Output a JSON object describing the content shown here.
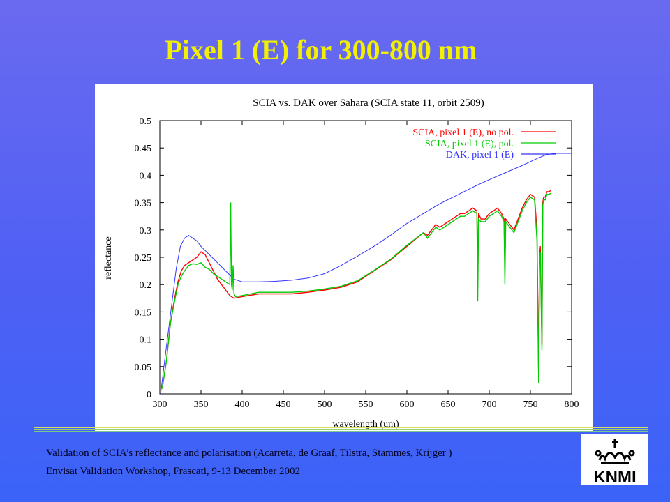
{
  "slide": {
    "title": "Pixel 1 (E) for 300-800 nm",
    "footer_line1": "Validation of SCIA’s reflectance and polarisation (Acarreta, de Graaf, Tilstra, Stammes, Krijger )",
    "footer_line2": "Envisat Validation Workshop, Frascati, 9-13 December 2002",
    "logo_text": "KNMI"
  },
  "colors": {
    "background_top": "#6a6af0",
    "background_bottom": "#3b63f8",
    "title": "#f2f000",
    "series_no_pol": "#ff0000",
    "series_pol": "#00cc00",
    "series_dak": "#3333ff"
  },
  "chart_data": {
    "type": "line",
    "title": "SCIA vs. DAK over Sahara (SCIA state 11, orbit 2509)",
    "xlabel": "wavelength (um)",
    "ylabel": "reflectance",
    "xlim": [
      300,
      800
    ],
    "ylim": [
      0,
      0.5
    ],
    "xticks": [
      300,
      350,
      400,
      450,
      500,
      550,
      600,
      650,
      700,
      750,
      800
    ],
    "yticks": [
      0,
      0.05,
      0.1,
      0.15,
      0.2,
      0.25,
      0.3,
      0.35,
      0.4,
      0.45,
      0.5
    ],
    "ytick_labels": [
      "0",
      "0.05",
      "0.1",
      "0.15",
      "0.2",
      "0.25",
      "0.3",
      "0.35",
      "0.4",
      "0.45",
      "0.5"
    ],
    "grid": false,
    "legend_position": "top-right",
    "series": [
      {
        "name": "SCIA, pixel 1 (E), no pol.",
        "color": "#ff0000",
        "x": [
          303,
          308,
          313,
          318,
          322,
          326,
          330,
          335,
          340,
          345,
          350,
          355,
          360,
          365,
          370,
          375,
          380,
          385,
          390,
          400,
          420,
          440,
          460,
          480,
          500,
          520,
          540,
          560,
          580,
          600,
          620,
          625,
          630,
          635,
          640,
          645,
          650,
          655,
          660,
          665,
          670,
          675,
          680,
          685,
          686,
          687,
          690,
          695,
          700,
          705,
          710,
          715,
          718,
          719,
          720,
          725,
          730,
          735,
          740,
          745,
          750,
          755,
          758,
          760,
          761,
          762,
          764,
          765,
          766,
          768,
          770,
          772,
          775
        ],
        "y": [
          0.01,
          0.06,
          0.13,
          0.175,
          0.205,
          0.225,
          0.235,
          0.24,
          0.245,
          0.25,
          0.26,
          0.255,
          0.24,
          0.225,
          0.21,
          0.2,
          0.19,
          0.18,
          0.175,
          0.178,
          0.183,
          0.183,
          0.183,
          0.186,
          0.19,
          0.195,
          0.205,
          0.225,
          0.245,
          0.27,
          0.295,
          0.29,
          0.3,
          0.31,
          0.305,
          0.31,
          0.315,
          0.32,
          0.325,
          0.33,
          0.33,
          0.335,
          0.34,
          0.335,
          0.2,
          0.33,
          0.32,
          0.32,
          0.33,
          0.335,
          0.34,
          0.33,
          0.32,
          0.23,
          0.32,
          0.31,
          0.3,
          0.32,
          0.34,
          0.355,
          0.365,
          0.36,
          0.3,
          0.03,
          0.25,
          0.27,
          0.09,
          0.35,
          0.36,
          0.36,
          0.37,
          0.37,
          0.372
        ]
      },
      {
        "name": "SCIA, pixel 1 (E), pol.",
        "color": "#00cc00",
        "x": [
          303,
          308,
          313,
          318,
          322,
          326,
          330,
          335,
          340,
          345,
          350,
          355,
          360,
          365,
          370,
          375,
          380,
          385,
          386,
          387,
          388,
          389,
          390,
          391,
          392,
          400,
          420,
          440,
          460,
          480,
          500,
          520,
          540,
          560,
          580,
          600,
          620,
          625,
          630,
          635,
          640,
          645,
          650,
          655,
          660,
          665,
          670,
          675,
          680,
          685,
          686,
          687,
          690,
          695,
          700,
          705,
          710,
          715,
          718,
          719,
          720,
          725,
          730,
          735,
          740,
          745,
          750,
          755,
          758,
          760,
          761,
          762,
          764,
          765,
          766,
          768,
          770,
          772,
          775
        ],
        "y": [
          0.01,
          0.06,
          0.13,
          0.17,
          0.2,
          0.215,
          0.225,
          0.235,
          0.238,
          0.237,
          0.24,
          0.232,
          0.228,
          0.22,
          0.215,
          0.21,
          0.205,
          0.2,
          0.35,
          0.2,
          0.19,
          0.235,
          0.185,
          0.18,
          0.178,
          0.18,
          0.186,
          0.186,
          0.186,
          0.188,
          0.192,
          0.197,
          0.207,
          0.226,
          0.246,
          0.272,
          0.295,
          0.285,
          0.295,
          0.305,
          0.3,
          0.305,
          0.31,
          0.315,
          0.32,
          0.325,
          0.325,
          0.33,
          0.335,
          0.33,
          0.17,
          0.32,
          0.315,
          0.315,
          0.325,
          0.33,
          0.335,
          0.325,
          0.315,
          0.2,
          0.315,
          0.305,
          0.295,
          0.315,
          0.335,
          0.35,
          0.36,
          0.355,
          0.28,
          0.02,
          0.24,
          0.26,
          0.08,
          0.345,
          0.355,
          0.355,
          0.365,
          0.365,
          0.367
        ]
      },
      {
        "name": "DAK, pixel 1 (E)",
        "color": "#3333ff",
        "x": [
          301,
          305,
          310,
          315,
          320,
          325,
          330,
          335,
          340,
          345,
          350,
          360,
          370,
          380,
          390,
          400,
          420,
          440,
          460,
          480,
          500,
          520,
          540,
          560,
          580,
          600,
          620,
          640,
          660,
          680,
          700,
          720,
          740,
          760,
          770,
          780,
          790,
          800
        ],
        "y": [
          0.0,
          0.05,
          0.11,
          0.17,
          0.23,
          0.27,
          0.285,
          0.29,
          0.285,
          0.28,
          0.27,
          0.255,
          0.24,
          0.225,
          0.21,
          0.205,
          0.205,
          0.206,
          0.208,
          0.212,
          0.22,
          0.235,
          0.252,
          0.27,
          0.29,
          0.312,
          0.33,
          0.348,
          0.363,
          0.378,
          0.392,
          0.405,
          0.418,
          0.432,
          0.438,
          0.44,
          0.44,
          0.44
        ]
      }
    ]
  }
}
